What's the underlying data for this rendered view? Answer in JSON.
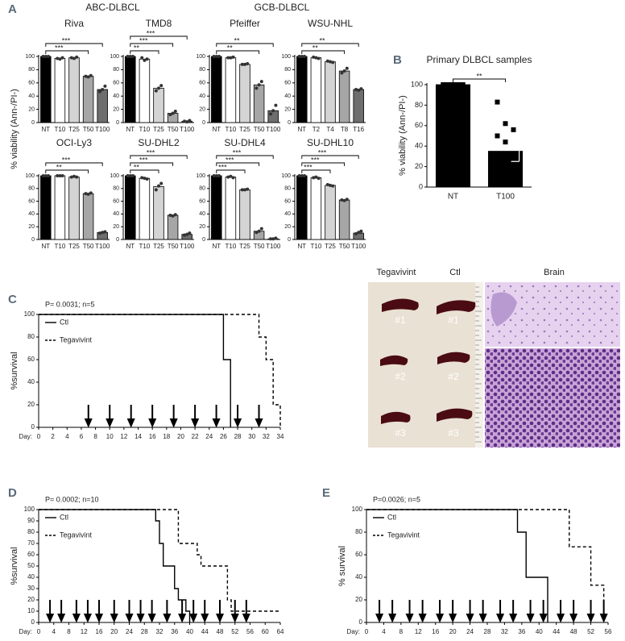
{
  "chart_data": [
    {
      "type": "bar",
      "panel_label": "A",
      "group_title": "ABC-DLBCL",
      "ylabel": "% viability (Ann-/PI-)",
      "title": "Riva",
      "categories": [
        "NT",
        "T10",
        "T25",
        "T50",
        "T100"
      ],
      "values": [
        100,
        97,
        98,
        70,
        50
      ],
      "points": [
        [
          100,
          100,
          100
        ],
        [
          97,
          96,
          98
        ],
        [
          98,
          97,
          99
        ],
        [
          70,
          69,
          71
        ],
        [
          47,
          50,
          55
        ]
      ],
      "colors": [
        "#000000",
        "#ffffff",
        "#d4d4d4",
        "#a6a6a6",
        "#6e6e6e"
      ],
      "point_color": "#333333",
      "ylim": [
        0,
        100
      ],
      "yticks": [
        0,
        20,
        40,
        60,
        80,
        100
      ],
      "significance": [
        {
          "label": "***",
          "categories": [
            "NT",
            "T50"
          ]
        },
        {
          "label": "***",
          "categories": [
            "NT",
            "T100"
          ]
        }
      ]
    },
    {
      "type": "bar",
      "title": "TMD8",
      "categories": [
        "NT",
        "T10",
        "T25",
        "T50",
        "T100"
      ],
      "values": [
        100,
        96,
        52,
        14,
        2
      ],
      "points": [
        [
          100,
          100,
          100
        ],
        [
          98,
          94,
          96
        ],
        [
          48,
          52,
          56
        ],
        [
          12,
          14,
          17
        ],
        [
          2,
          1,
          3
        ]
      ],
      "colors": [
        "#000000",
        "#ffffff",
        "#d4d4d4",
        "#a6a6a6",
        "#6e6e6e"
      ],
      "point_color": "#333333",
      "ylim": [
        0,
        100
      ],
      "yticks": [
        0,
        20,
        40,
        60,
        80,
        100
      ],
      "significance": [
        {
          "label": "**",
          "categories": [
            "NT",
            "T25"
          ]
        },
        {
          "label": "***",
          "categories": [
            "NT",
            "T50"
          ]
        },
        {
          "label": "***",
          "categories": [
            "NT",
            "T100"
          ]
        }
      ]
    },
    {
      "type": "bar",
      "group_title": "GCB-DLBCL",
      "title": "Pfeiffer",
      "categories": [
        "NT",
        "T10",
        "T25",
        "T50",
        "T100"
      ],
      "values": [
        100,
        98,
        88,
        57,
        18
      ],
      "points": [
        [
          100,
          100,
          100
        ],
        [
          98,
          98,
          99
        ],
        [
          88,
          88,
          89
        ],
        [
          52,
          57,
          62
        ],
        [
          13,
          18,
          26
        ]
      ],
      "colors": [
        "#000000",
        "#ffffff",
        "#d4d4d4",
        "#a6a6a6",
        "#6e6e6e"
      ],
      "point_color": "#333333",
      "ylim": [
        0,
        100
      ],
      "yticks": [
        0,
        20,
        40,
        60,
        80,
        100
      ],
      "significance": [
        {
          "label": "**",
          "categories": [
            "NT",
            "T50"
          ]
        },
        {
          "label": "**",
          "categories": [
            "NT",
            "T100"
          ]
        }
      ]
    },
    {
      "type": "bar",
      "title": "WSU-NHL",
      "categories": [
        "NT",
        "T2",
        "T4",
        "T8",
        "T16"
      ],
      "values": [
        100,
        98,
        92,
        78,
        50
      ],
      "points": [
        [
          100,
          100,
          100
        ],
        [
          99,
          98,
          97
        ],
        [
          93,
          92,
          91
        ],
        [
          75,
          78,
          82
        ],
        [
          50,
          49,
          51
        ]
      ],
      "colors": [
        "#000000",
        "#ffffff",
        "#d4d4d4",
        "#a6a6a6",
        "#6e6e6e"
      ],
      "point_color": "#333333",
      "ylim": [
        0,
        100
      ],
      "yticks": [
        0,
        20,
        40,
        60,
        80,
        100
      ],
      "significance": [
        {
          "label": "**",
          "categories": [
            "NT",
            "T8"
          ]
        },
        {
          "label": "**",
          "categories": [
            "NT",
            "T16"
          ]
        }
      ]
    },
    {
      "type": "bar",
      "title": "OCI-Ly3",
      "categories": [
        "NT",
        "T10",
        "T25",
        "T50",
        "T100"
      ],
      "values": [
        100,
        100,
        98,
        72,
        11
      ],
      "points": [
        [
          100,
          100,
          100
        ],
        [
          100,
          100,
          100
        ],
        [
          98,
          99,
          98
        ],
        [
          72,
          71,
          73
        ],
        [
          10,
          11,
          12
        ]
      ],
      "colors": [
        "#000000",
        "#ffffff",
        "#d4d4d4",
        "#a6a6a6",
        "#6e6e6e"
      ],
      "point_color": "#333333",
      "ylim": [
        0,
        100
      ],
      "yticks": [
        0,
        20,
        40,
        60,
        80,
        100
      ],
      "significance": [
        {
          "label": "**",
          "categories": [
            "NT",
            "T50"
          ]
        },
        {
          "label": "***",
          "categories": [
            "NT",
            "T100"
          ]
        }
      ]
    },
    {
      "type": "bar",
      "title": "SU-DHL2",
      "categories": [
        "NT",
        "T10",
        "T25",
        "T50",
        "T100"
      ],
      "values": [
        100,
        96,
        83,
        38,
        8
      ],
      "points": [
        [
          100,
          100,
          100
        ],
        [
          97,
          96,
          95
        ],
        [
          78,
          84,
          88
        ],
        [
          38,
          37,
          39
        ],
        [
          7,
          8,
          10
        ]
      ],
      "colors": [
        "#000000",
        "#ffffff",
        "#d4d4d4",
        "#a6a6a6",
        "#6e6e6e"
      ],
      "point_color": "#333333",
      "ylim": [
        0,
        100
      ],
      "yticks": [
        0,
        20,
        40,
        60,
        80,
        100
      ],
      "significance": [
        {
          "label": "**",
          "categories": [
            "NT",
            "T25"
          ]
        },
        {
          "label": "***",
          "categories": [
            "NT",
            "T50"
          ]
        },
        {
          "label": "***",
          "categories": [
            "NT",
            "T100"
          ]
        }
      ]
    },
    {
      "type": "bar",
      "title": "SU-DHL4",
      "categories": [
        "NT",
        "T10",
        "T25",
        "T50",
        "T100"
      ],
      "values": [
        100,
        98,
        78,
        13,
        1
      ],
      "points": [
        [
          100,
          100,
          100
        ],
        [
          98,
          99,
          97
        ],
        [
          78,
          78,
          79
        ],
        [
          11,
          13,
          17
        ],
        [
          1,
          1,
          2
        ]
      ],
      "colors": [
        "#000000",
        "#ffffff",
        "#d4d4d4",
        "#a6a6a6",
        "#6e6e6e"
      ],
      "point_color": "#333333",
      "ylim": [
        0,
        100
      ],
      "yticks": [
        0,
        20,
        40,
        60,
        80,
        100
      ],
      "significance": [
        {
          "label": "***",
          "categories": [
            "NT",
            "T25"
          ]
        },
        {
          "label": "***",
          "categories": [
            "NT",
            "T50"
          ]
        },
        {
          "label": "***",
          "categories": [
            "NT",
            "T100"
          ]
        }
      ]
    },
    {
      "type": "bar",
      "title": "SU-DHL10",
      "categories": [
        "NT",
        "T10",
        "T25",
        "T50",
        "T100"
      ],
      "values": [
        100,
        97,
        85,
        62,
        10
      ],
      "points": [
        [
          100,
          100,
          100
        ],
        [
          97,
          98,
          96
        ],
        [
          86,
          85,
          84
        ],
        [
          62,
          61,
          63
        ],
        [
          9,
          11,
          13
        ]
      ],
      "colors": [
        "#000000",
        "#ffffff",
        "#d4d4d4",
        "#a6a6a6",
        "#6e6e6e"
      ],
      "point_color": "#333333",
      "ylim": [
        0,
        100
      ],
      "yticks": [
        0,
        20,
        40,
        60,
        80,
        100
      ],
      "significance": [
        {
          "label": "***",
          "categories": [
            "NT",
            "T25"
          ]
        },
        {
          "label": "***",
          "categories": [
            "NT",
            "T50"
          ]
        },
        {
          "label": "***",
          "categories": [
            "NT",
            "T100"
          ]
        }
      ]
    },
    {
      "type": "bar",
      "panel_label": "B",
      "title": "Primary DLBCL samples",
      "ylabel": "% viability (Ann-/PI-)",
      "categories": [
        "NT",
        "T100"
      ],
      "values": [
        100,
        35
      ],
      "errors": [
        0,
        10
      ],
      "points": [
        [
          100,
          100,
          100,
          100,
          100,
          100,
          100,
          100
        ],
        [
          83,
          62,
          56,
          50,
          44,
          22,
          14,
          5
        ]
      ],
      "colors": [
        "#000000",
        "#000000"
      ],
      "point_color": "#000000",
      "marker": "square",
      "ylim": [
        0,
        100
      ],
      "yticks": [
        0,
        20,
        40,
        60,
        80,
        100
      ],
      "significance": [
        {
          "label": "**",
          "categories": [
            "NT",
            "T100"
          ]
        }
      ]
    },
    {
      "type": "step",
      "panel_label": "C",
      "annotation": "P= 0.0031; n=5",
      "ylabel": "%survival",
      "xlabel": "Day:",
      "xlim": [
        0,
        34
      ],
      "xticks": [
        0,
        2,
        4,
        6,
        8,
        10,
        12,
        14,
        16,
        18,
        20,
        22,
        24,
        26,
        28,
        30,
        32,
        34
      ],
      "ylim": [
        0,
        100
      ],
      "yticks": [
        0,
        20,
        40,
        60,
        80,
        100
      ],
      "series": [
        {
          "name": "Ctl",
          "color": "#000000",
          "line_style": "solid",
          "x": [
            0,
            26,
            27
          ],
          "values": [
            100,
            60,
            0
          ]
        },
        {
          "name": "Tegavivint",
          "color": "#000000",
          "line_style": "dashed",
          "x": [
            0,
            31,
            32,
            33,
            34
          ],
          "values": [
            100,
            80,
            60,
            20,
            0
          ]
        }
      ],
      "treatment_days": [
        7,
        10,
        13,
        16,
        19,
        22,
        25,
        28,
        31
      ]
    },
    {
      "type": "step",
      "panel_label": "D",
      "annotation": "P= 0.0002; n=10",
      "ylabel": "%survival",
      "xlabel": "Day:",
      "xlim": [
        0,
        64
      ],
      "xticks": [
        0,
        4,
        8,
        12,
        16,
        20,
        24,
        28,
        32,
        36,
        40,
        44,
        48,
        52,
        56,
        60,
        64
      ],
      "ylim": [
        0,
        100
      ],
      "yticks": [
        0,
        10,
        20,
        30,
        40,
        50,
        60,
        70,
        80,
        90,
        100
      ],
      "series": [
        {
          "name": "Ctl",
          "color": "#000000",
          "line_style": "solid",
          "x": [
            0,
            31,
            32,
            33,
            36,
            37,
            39,
            40
          ],
          "values": [
            100,
            90,
            70,
            50,
            30,
            20,
            10,
            0
          ]
        },
        {
          "name": "Tegavivint",
          "color": "#000000",
          "line_style": "dashed",
          "x": [
            0,
            37,
            42,
            43,
            50,
            51,
            64
          ],
          "values": [
            100,
            70,
            60,
            50,
            20,
            10,
            10
          ]
        }
      ],
      "treatment_days": [
        3,
        6,
        10,
        13,
        16,
        20,
        24,
        27,
        30,
        34,
        38,
        41,
        44,
        48,
        52,
        55
      ]
    },
    {
      "type": "step",
      "panel_label": "E",
      "annotation": "P=0.0026; n=5",
      "ylabel": "% survival",
      "xlabel": "Day:",
      "xlim": [
        0,
        56
      ],
      "xticks": [
        0,
        4,
        8,
        12,
        16,
        20,
        24,
        28,
        32,
        36,
        40,
        44,
        48,
        52,
        56
      ],
      "ylim": [
        0,
        100
      ],
      "yticks": [
        0,
        20,
        40,
        60,
        80,
        100
      ],
      "series": [
        {
          "name": "Ctl",
          "color": "#000000",
          "line_style": "solid",
          "x": [
            0,
            35,
            37,
            42
          ],
          "values": [
            100,
            80,
            40,
            0
          ]
        },
        {
          "name": "Tegavivint",
          "color": "#000000",
          "line_style": "dashed",
          "x": [
            0,
            47,
            52,
            55
          ],
          "values": [
            100,
            67,
            33,
            0
          ]
        }
      ],
      "treatment_days": [
        3,
        6,
        10,
        13,
        17,
        20,
        24,
        27,
        31,
        34,
        38,
        41,
        45,
        48,
        52,
        55
      ]
    }
  ],
  "image_panel": {
    "labels": [
      "Tegavivint",
      "Ctl",
      "Brain"
    ],
    "sample_labels": [
      "#1",
      "#2",
      "#3"
    ]
  }
}
